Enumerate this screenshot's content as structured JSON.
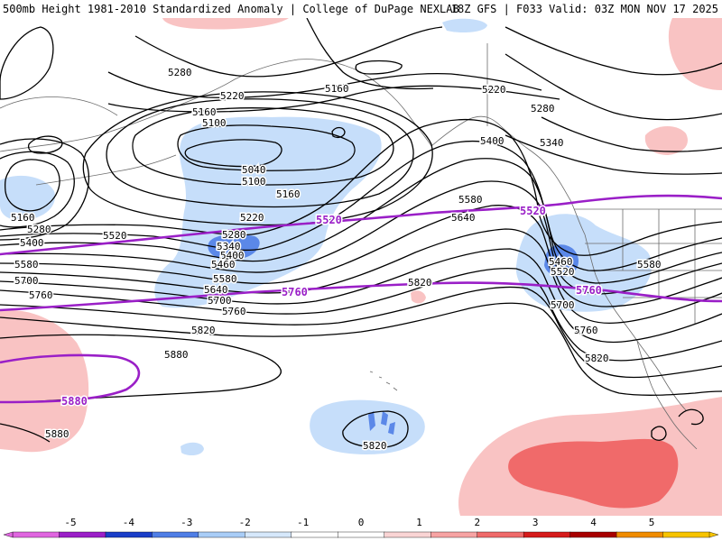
{
  "header": {
    "title": "500mb Height 1981-2010 Standardized Anomaly | College of DuPage NEXLAB",
    "run_info": "18Z GFS | F033 Valid: 03Z MON NOV 17 2025"
  },
  "colors": {
    "contour": "#000000",
    "highlight_contour": "#9a1fc7",
    "coastline": "#666666",
    "anom_neg1": "#c6defa",
    "anom_neg2": "#5b88e8",
    "anom_pos1": "#f9c3c3",
    "anom_pos2": "#f06a6a"
  },
  "contour_labels": [
    {
      "text": "5280"
    },
    {
      "text": "5220"
    },
    {
      "text": "5160"
    },
    {
      "text": "5100"
    },
    {
      "text": "5040"
    },
    {
      "text": "5100"
    },
    {
      "text": "5160"
    },
    {
      "text": "5220"
    },
    {
      "text": "5280"
    },
    {
      "text": "5340"
    },
    {
      "text": "5400"
    },
    {
      "text": "5460"
    },
    {
      "text": "5580"
    },
    {
      "text": "5640"
    },
    {
      "text": "5700"
    },
    {
      "text": "5760"
    },
    {
      "text": "5820"
    },
    {
      "text": "5880"
    },
    {
      "text": "5160"
    },
    {
      "text": "5280"
    },
    {
      "text": "5400"
    },
    {
      "text": "5520"
    },
    {
      "text": "5580"
    },
    {
      "text": "5700"
    },
    {
      "text": "5760"
    },
    {
      "text": "5160"
    },
    {
      "text": "5220"
    },
    {
      "text": "5280"
    },
    {
      "text": "5340"
    },
    {
      "text": "5400"
    },
    {
      "text": "5580"
    },
    {
      "text": "5640"
    },
    {
      "text": "5460"
    },
    {
      "text": "5520"
    },
    {
      "text": "5580"
    },
    {
      "text": "5700"
    },
    {
      "text": "5760"
    },
    {
      "text": "5820"
    },
    {
      "text": "5820"
    },
    {
      "text": "5820"
    },
    {
      "text": "5880"
    }
  ],
  "highlight_labels": [
    {
      "text": "5520"
    },
    {
      "text": "5520"
    },
    {
      "text": "5760"
    },
    {
      "text": "5760"
    },
    {
      "text": "5880"
    }
  ],
  "colorbar": {
    "ticks": [
      "-5",
      "-4",
      "-3",
      "-2",
      "-1",
      "0",
      "1",
      "2",
      "3",
      "4",
      "5"
    ],
    "colors": [
      "#e066e0",
      "#9b1fc8",
      "#1a3ec8",
      "#4f7ee6",
      "#a9cdf7",
      "#d6e8fb",
      "#ffffff",
      "#ffffff",
      "#fad4d4",
      "#f7a3a3",
      "#ef6a6a",
      "#d61c1c",
      "#a80000",
      "#f08c00",
      "#f7c400"
    ]
  }
}
